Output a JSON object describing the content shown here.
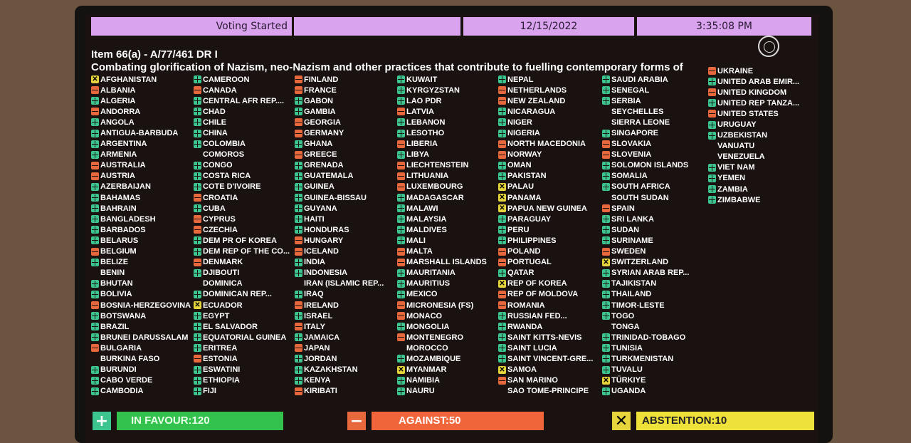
{
  "header": {
    "status": "Voting Started",
    "blank": "",
    "date": "12/15/2022",
    "time": "3:35:08 PM"
  },
  "item": {
    "code": "Item 66(a) - A/77/461 DR I",
    "title": "Combating glorification of Nazism, neo-Nazism and other practices that contribute to fuelling contemporary forms of"
  },
  "colors": {
    "yes": "#3cc58f",
    "no": "#e8683e",
    "abstain": "#e6d43c",
    "header": "#d9a3ee"
  },
  "vote_icons": {
    "Y": "plus-icon",
    "N": "minus-icon",
    "A": "x-icon"
  },
  "columns": [
    [
      [
        "AFGHANISTAN",
        "A"
      ],
      [
        "ALBANIA",
        "N"
      ],
      [
        "ALGERIA",
        "Y"
      ],
      [
        "ANDORRA",
        "N"
      ],
      [
        "ANGOLA",
        "Y"
      ],
      [
        "ANTIGUA-BARBUDA",
        "Y"
      ],
      [
        "ARGENTINA",
        "Y"
      ],
      [
        "ARMENIA",
        "Y"
      ],
      [
        "AUSTRALIA",
        "N"
      ],
      [
        "AUSTRIA",
        "N"
      ],
      [
        "AZERBAIJAN",
        "Y"
      ],
      [
        "BAHAMAS",
        "Y"
      ],
      [
        "BAHRAIN",
        "Y"
      ],
      [
        "BANGLADESH",
        "Y"
      ],
      [
        "BARBADOS",
        "Y"
      ],
      [
        "BELARUS",
        "Y"
      ],
      [
        "BELGIUM",
        "N"
      ],
      [
        "BELIZE",
        "Y"
      ],
      [
        "BENIN",
        ""
      ],
      [
        "BHUTAN",
        "Y"
      ],
      [
        "BOLIVIA",
        "Y"
      ],
      [
        "BOSNIA-HERZEGOVINA",
        "N"
      ],
      [
        "BOTSWANA",
        "Y"
      ],
      [
        "BRAZIL",
        "Y"
      ],
      [
        "BRUNEI DARUSSALAM",
        "Y"
      ],
      [
        "BULGARIA",
        "N"
      ],
      [
        "BURKINA FASO",
        ""
      ],
      [
        "BURUNDI",
        "Y"
      ],
      [
        "CABO VERDE",
        "Y"
      ],
      [
        "CAMBODIA",
        "Y"
      ]
    ],
    [
      [
        "CAMEROON",
        "Y"
      ],
      [
        "CANADA",
        "N"
      ],
      [
        "CENTRAL AFR REP....",
        "Y"
      ],
      [
        "CHAD",
        "Y"
      ],
      [
        "CHILE",
        "Y"
      ],
      [
        "CHINA",
        "Y"
      ],
      [
        "COLOMBIA",
        "Y"
      ],
      [
        "COMOROS",
        ""
      ],
      [
        "CONGO",
        "Y"
      ],
      [
        "COSTA RICA",
        "Y"
      ],
      [
        "COTE D'IVOIRE",
        "Y"
      ],
      [
        "CROATIA",
        "N"
      ],
      [
        "CUBA",
        "Y"
      ],
      [
        "CYPRUS",
        "N"
      ],
      [
        "CZECHIA",
        "N"
      ],
      [
        "DEM PR OF KOREA",
        "Y"
      ],
      [
        "DEM REP OF THE CO...",
        "Y"
      ],
      [
        "DENMARK",
        "N"
      ],
      [
        "DJIBOUTI",
        "Y"
      ],
      [
        "DOMINICA",
        ""
      ],
      [
        "DOMINICAN REP...",
        "Y"
      ],
      [
        "ECUADOR",
        "A"
      ],
      [
        "EGYPT",
        "Y"
      ],
      [
        "EL SALVADOR",
        "Y"
      ],
      [
        "EQUATORIAL GUINEA",
        "Y"
      ],
      [
        "ERITREA",
        "Y"
      ],
      [
        "ESTONIA",
        "N"
      ],
      [
        "ESWATINI",
        "Y"
      ],
      [
        "ETHIOPIA",
        "Y"
      ],
      [
        "FIJI",
        "Y"
      ]
    ],
    [
      [
        "FINLAND",
        "N"
      ],
      [
        "FRANCE",
        "N"
      ],
      [
        "GABON",
        "Y"
      ],
      [
        "GAMBIA",
        "Y"
      ],
      [
        "GEORGIA",
        "N"
      ],
      [
        "GERMANY",
        "N"
      ],
      [
        "GHANA",
        "Y"
      ],
      [
        "GREECE",
        "N"
      ],
      [
        "GRENADA",
        "Y"
      ],
      [
        "GUATEMALA",
        "Y"
      ],
      [
        "GUINEA",
        "Y"
      ],
      [
        "GUINEA-BISSAU",
        "Y"
      ],
      [
        "GUYANA",
        "Y"
      ],
      [
        "HAITI",
        "Y"
      ],
      [
        "HONDURAS",
        "Y"
      ],
      [
        "HUNGARY",
        "N"
      ],
      [
        "ICELAND",
        "N"
      ],
      [
        "INDIA",
        "Y"
      ],
      [
        "INDONESIA",
        "Y"
      ],
      [
        "IRAN (ISLAMIC REP...",
        ""
      ],
      [
        "IRAQ",
        "Y"
      ],
      [
        "IRELAND",
        "N"
      ],
      [
        "ISRAEL",
        "Y"
      ],
      [
        "ITALY",
        "N"
      ],
      [
        "JAMAICA",
        "Y"
      ],
      [
        "JAPAN",
        "N"
      ],
      [
        "JORDAN",
        "Y"
      ],
      [
        "KAZAKHSTAN",
        "Y"
      ],
      [
        "KENYA",
        "Y"
      ],
      [
        "KIRIBATI",
        "N"
      ]
    ],
    [
      [
        "KUWAIT",
        "Y"
      ],
      [
        "KYRGYZSTAN",
        "Y"
      ],
      [
        "LAO PDR",
        "Y"
      ],
      [
        "LATVIA",
        "N"
      ],
      [
        "LEBANON",
        "Y"
      ],
      [
        "LESOTHO",
        "Y"
      ],
      [
        "LIBERIA",
        "N"
      ],
      [
        "LIBYA",
        "Y"
      ],
      [
        "LIECHTENSTEIN",
        "N"
      ],
      [
        "LITHUANIA",
        "N"
      ],
      [
        "LUXEMBOURG",
        "N"
      ],
      [
        "MADAGASCAR",
        "Y"
      ],
      [
        "MALAWI",
        "Y"
      ],
      [
        "MALAYSIA",
        "Y"
      ],
      [
        "MALDIVES",
        "Y"
      ],
      [
        "MALI",
        "Y"
      ],
      [
        "MALTA",
        "N"
      ],
      [
        "MARSHALL ISLANDS",
        "N"
      ],
      [
        "MAURITANIA",
        "Y"
      ],
      [
        "MAURITIUS",
        "Y"
      ],
      [
        "MEXICO",
        "Y"
      ],
      [
        "MICRONESIA (FS)",
        "N"
      ],
      [
        "MONACO",
        "N"
      ],
      [
        "MONGOLIA",
        "Y"
      ],
      [
        "MONTENEGRO",
        "N"
      ],
      [
        "MOROCCO",
        ""
      ],
      [
        "MOZAMBIQUE",
        "Y"
      ],
      [
        "MYANMAR",
        "A"
      ],
      [
        "NAMIBIA",
        "Y"
      ],
      [
        "NAURU",
        "Y"
      ]
    ],
    [
      [
        "NEPAL",
        "Y"
      ],
      [
        "NETHERLANDS",
        "N"
      ],
      [
        "NEW ZEALAND",
        "N"
      ],
      [
        "NICARAGUA",
        "Y"
      ],
      [
        "NIGER",
        "Y"
      ],
      [
        "NIGERIA",
        "Y"
      ],
      [
        "NORTH MACEDONIA",
        "N"
      ],
      [
        "NORWAY",
        "N"
      ],
      [
        "OMAN",
        "Y"
      ],
      [
        "PAKISTAN",
        "Y"
      ],
      [
        "PALAU",
        "A"
      ],
      [
        "PANAMA",
        "A"
      ],
      [
        "PAPUA NEW GUINEA",
        "A"
      ],
      [
        "PARAGUAY",
        "Y"
      ],
      [
        "PERU",
        "Y"
      ],
      [
        "PHILIPPINES",
        "Y"
      ],
      [
        "POLAND",
        "N"
      ],
      [
        "PORTUGAL",
        "N"
      ],
      [
        "QATAR",
        "Y"
      ],
      [
        "REP OF KOREA",
        "A"
      ],
      [
        "REP OF MOLDOVA",
        "N"
      ],
      [
        "ROMANIA",
        "N"
      ],
      [
        "RUSSIAN FED...",
        "Y"
      ],
      [
        "RWANDA",
        "Y"
      ],
      [
        "SAINT KITTS-NEVIS",
        "Y"
      ],
      [
        "SAINT LUCIA",
        "Y"
      ],
      [
        "SAINT VINCENT-GRE...",
        "Y"
      ],
      [
        "SAMOA",
        "A"
      ],
      [
        "SAN MARINO",
        "N"
      ],
      [
        "SAO TOME-PRINCIPE",
        ""
      ]
    ],
    [
      [
        "SAUDI ARABIA",
        "Y"
      ],
      [
        "SENEGAL",
        "Y"
      ],
      [
        "SERBIA",
        "Y"
      ],
      [
        "SEYCHELLES",
        ""
      ],
      [
        "SIERRA LEONE",
        ""
      ],
      [
        "SINGAPORE",
        "Y"
      ],
      [
        "SLOVAKIA",
        "N"
      ],
      [
        "SLOVENIA",
        "N"
      ],
      [
        "SOLOMON ISLANDS",
        "Y"
      ],
      [
        "SOMALIA",
        "Y"
      ],
      [
        "SOUTH AFRICA",
        "Y"
      ],
      [
        "SOUTH SUDAN",
        ""
      ],
      [
        "SPAIN",
        "N"
      ],
      [
        "SRI LANKA",
        "Y"
      ],
      [
        "SUDAN",
        "Y"
      ],
      [
        "SURINAME",
        "Y"
      ],
      [
        "SWEDEN",
        "N"
      ],
      [
        "SWITZERLAND",
        "A"
      ],
      [
        "SYRIAN ARAB REP...",
        "Y"
      ],
      [
        "TAJIKISTAN",
        "Y"
      ],
      [
        "THAILAND",
        "Y"
      ],
      [
        "TIMOR-LESTE",
        "Y"
      ],
      [
        "TOGO",
        "Y"
      ],
      [
        "TONGA",
        ""
      ],
      [
        "TRINIDAD-TOBAGO",
        "Y"
      ],
      [
        "TUNISIA",
        "Y"
      ],
      [
        "TURKMENISTAN",
        "Y"
      ],
      [
        "TUVALU",
        "Y"
      ],
      [
        "TÜRKIYE",
        "A"
      ],
      [
        "UGANDA",
        "Y"
      ]
    ],
    [
      [
        "UKRAINE",
        "N"
      ],
      [
        "UNITED ARAB EMIR...",
        "Y"
      ],
      [
        "UNITED KINGDOM",
        "N"
      ],
      [
        "UNITED REP TANZA...",
        "Y"
      ],
      [
        "UNITED STATES",
        "N"
      ],
      [
        "URUGUAY",
        "Y"
      ],
      [
        "UZBEKISTAN",
        "Y"
      ],
      [
        "VANUATU",
        ""
      ],
      [
        "VENEZUELA",
        ""
      ],
      [
        "VIET NAM",
        "Y"
      ],
      [
        "YEMEN",
        "Y"
      ],
      [
        "ZAMBIA",
        "Y"
      ],
      [
        "ZIMBABWE",
        "Y"
      ]
    ]
  ],
  "totals": {
    "in_favour": "IN FAVOUR:120",
    "against": "AGAINST:50",
    "abstention": "ABSTENTION:10"
  }
}
